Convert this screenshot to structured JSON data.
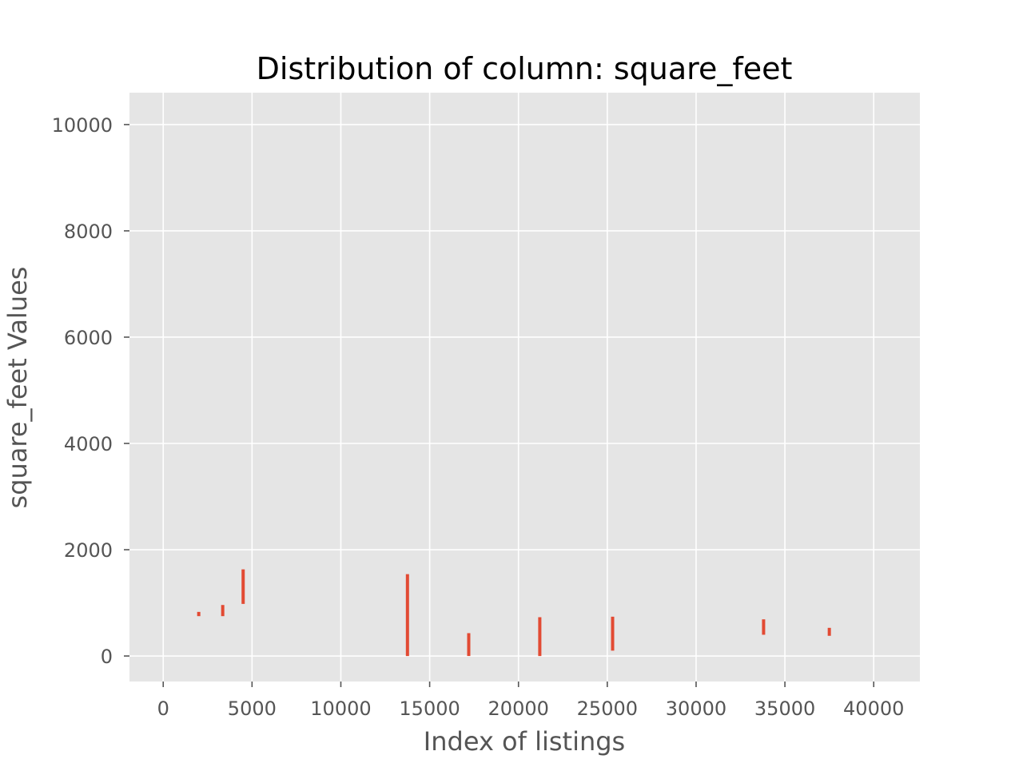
{
  "chart_data": {
    "type": "line",
    "title": "Distribution of column: square_feet",
    "xlabel": "Index of listings",
    "ylabel": "square_feet Values",
    "xlim": [
      -1900,
      42600
    ],
    "ylim": [
      -480,
      10600
    ],
    "xticks": [
      0,
      5000,
      10000,
      15000,
      20000,
      25000,
      30000,
      35000,
      40000
    ],
    "yticks": [
      0,
      2000,
      4000,
      6000,
      8000,
      10000
    ],
    "grid": true,
    "segments": [
      {
        "x": 2000,
        "y_min": 750,
        "y_max": 830
      },
      {
        "x": 3350,
        "y_min": 750,
        "y_max": 960
      },
      {
        "x": 4500,
        "y_min": 980,
        "y_max": 1630
      },
      {
        "x": 13750,
        "y_min": 0,
        "y_max": 1540
      },
      {
        "x": 17200,
        "y_min": 0,
        "y_max": 430
      },
      {
        "x": 21200,
        "y_min": 0,
        "y_max": 730
      },
      {
        "x": 25300,
        "y_min": 100,
        "y_max": 740
      },
      {
        "x": 33800,
        "y_min": 400,
        "y_max": 690
      },
      {
        "x": 37500,
        "y_min": 380,
        "y_max": 530
      }
    ],
    "colors": {
      "plot_bg": "#e5e5e5",
      "grid": "#ffffff",
      "series": "#e24a33",
      "tick_text": "#555555",
      "title_text": "#000000"
    }
  }
}
